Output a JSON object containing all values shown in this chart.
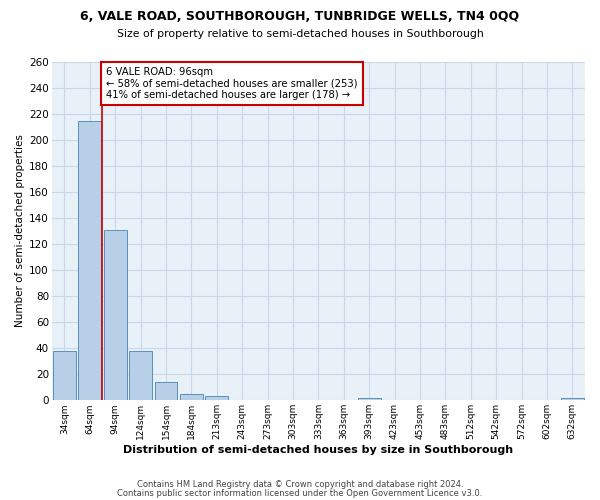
{
  "title1": "6, VALE ROAD, SOUTHBOROUGH, TUNBRIDGE WELLS, TN4 0QQ",
  "title2": "Size of property relative to semi-detached houses in Southborough",
  "xlabel": "Distribution of semi-detached houses by size in Southborough",
  "ylabel": "Number of semi-detached properties",
  "bin_labels": [
    "34sqm",
    "64sqm",
    "94sqm",
    "124sqm",
    "154sqm",
    "184sqm",
    "213sqm",
    "243sqm",
    "273sqm",
    "303sqm",
    "333sqm",
    "363sqm",
    "393sqm",
    "423sqm",
    "453sqm",
    "483sqm",
    "512sqm",
    "542sqm",
    "572sqm",
    "602sqm",
    "632sqm"
  ],
  "bar_values": [
    38,
    214,
    131,
    38,
    14,
    5,
    3,
    0,
    0,
    0,
    0,
    0,
    2,
    0,
    0,
    0,
    0,
    0,
    0,
    0,
    2
  ],
  "bar_color": "#b8cfe8",
  "bar_edge_color": "#5a8fbf",
  "property_line_x": 1.5,
  "property_label": "6 VALE ROAD: 96sqm",
  "annotation_line1": "← 58% of semi-detached houses are smaller (253)",
  "annotation_line2": "41% of semi-detached houses are larger (178) →",
  "annotation_box_color": "#ffffff",
  "annotation_box_edge_color": "#cc0000",
  "property_line_color": "#cc0000",
  "ylim": [
    0,
    260
  ],
  "yticks": [
    0,
    20,
    40,
    60,
    80,
    100,
    120,
    140,
    160,
    180,
    200,
    220,
    240,
    260
  ],
  "background_color": "#ffffff",
  "plot_bg_color": "#e8f0f8",
  "grid_color": "#c8d8e8",
  "footer1": "Contains HM Land Registry data © Crown copyright and database right 2024.",
  "footer2": "Contains public sector information licensed under the Open Government Licence v3.0."
}
